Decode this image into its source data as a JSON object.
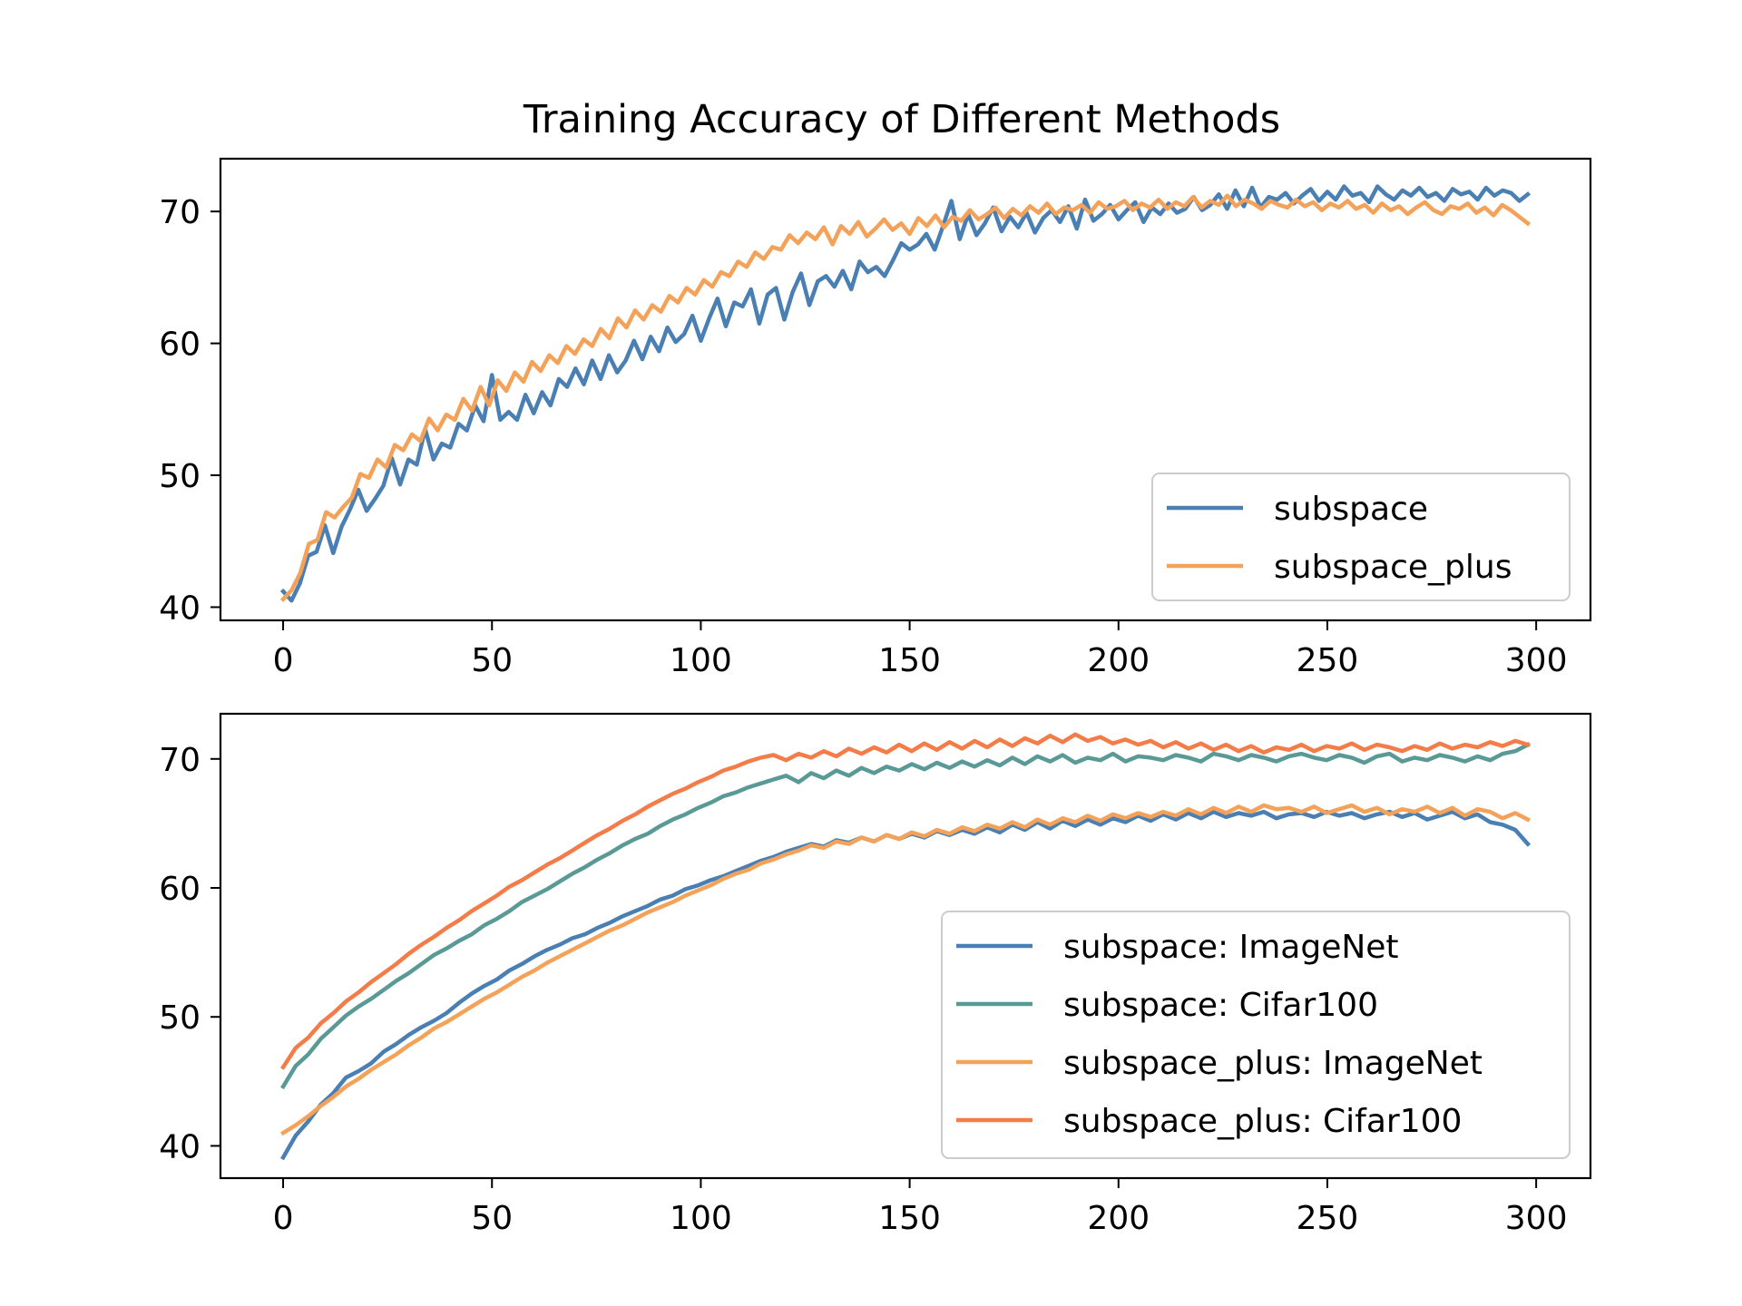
{
  "figure_title": "Training Accuracy of Different Methods",
  "chart_data": [
    {
      "type": "line",
      "title": "",
      "xlabel": "",
      "ylabel": "",
      "xlim": [
        -15,
        313
      ],
      "ylim": [
        39,
        74
      ],
      "xticks": [
        0,
        50,
        100,
        150,
        200,
        250,
        300
      ],
      "yticks": [
        40,
        50,
        60,
        70
      ],
      "grid": false,
      "legend_position": "lower right",
      "series": [
        {
          "name": "subspace",
          "color": "#4a7fb3",
          "values": [
            41.2,
            40.5,
            41.8,
            43.9,
            44.2,
            46.2,
            44.1,
            46.1,
            47.4,
            48.9,
            47.3,
            48.2,
            49.2,
            51.3,
            49.3,
            51.2,
            50.8,
            53.5,
            51.2,
            52.4,
            52.1,
            53.9,
            53.4,
            55.3,
            54.1,
            57.6,
            54.2,
            54.8,
            54.2,
            56.1,
            54.7,
            56.3,
            55.3,
            57.3,
            56.7,
            58.1,
            56.9,
            58.7,
            57.3,
            59.1,
            57.8,
            58.7,
            60.2,
            58.8,
            60.5,
            59.4,
            61.2,
            60.1,
            60.7,
            62.1,
            60.2,
            61.9,
            63.4,
            61.3,
            63.1,
            62.8,
            64.1,
            61.5,
            63.7,
            64.2,
            61.8,
            63.9,
            65.3,
            62.9,
            64.7,
            65.1,
            64.3,
            65.5,
            64.1,
            66.2,
            65.4,
            65.8,
            65.1,
            66.3,
            67.6,
            67.1,
            67.5,
            68.3,
            67.1,
            68.9,
            70.8,
            67.9,
            69.8,
            68.2,
            69.1,
            70.3,
            68.5,
            69.6,
            68.8,
            69.9,
            68.4,
            69.5,
            70.1,
            69.2,
            70.4,
            68.7,
            70.9,
            69.3,
            69.8,
            70.5,
            69.4,
            70.1,
            70.7,
            69.2,
            70.3,
            69.8,
            70.6,
            69.9,
            70.2,
            71.1,
            70.1,
            70.5,
            71.3,
            70.2,
            71.6,
            70.4,
            71.8,
            70.3,
            71.1,
            70.9,
            71.4,
            70.6,
            71.2,
            71.7,
            70.8,
            71.5,
            70.9,
            71.9,
            71.2,
            71.4,
            70.7,
            71.9,
            71.3,
            70.9,
            71.6,
            71.2,
            71.8,
            71.1,
            71.4,
            70.8,
            71.7,
            71.3,
            71.5,
            70.9,
            71.8,
            71.2,
            71.6,
            71.4,
            70.8,
            71.3
          ]
        },
        {
          "name": "subspace_plus",
          "color": "#f4a259",
          "values": [
            40.6,
            41.3,
            42.6,
            44.8,
            45.1,
            47.2,
            46.8,
            47.6,
            48.3,
            50.1,
            49.8,
            51.2,
            50.6,
            52.3,
            51.9,
            53.1,
            52.6,
            54.3,
            53.4,
            54.6,
            54.2,
            55.8,
            54.9,
            56.7,
            55.3,
            57.2,
            56.4,
            57.8,
            57.1,
            58.6,
            57.9,
            59.1,
            58.5,
            59.8,
            59.2,
            60.3,
            59.8,
            61.1,
            60.4,
            61.9,
            61.2,
            62.5,
            61.8,
            62.9,
            62.4,
            63.6,
            63.1,
            64.2,
            63.7,
            64.8,
            64.3,
            65.4,
            65.1,
            66.2,
            65.8,
            66.9,
            66.4,
            67.3,
            67.1,
            68.2,
            67.6,
            68.4,
            67.9,
            68.8,
            67.5,
            68.9,
            68.3,
            69.2,
            68.1,
            68.7,
            69.4,
            68.6,
            69.1,
            68.3,
            69.5,
            68.9,
            69.7,
            68.8,
            69.6,
            69.3,
            70.1,
            69.4,
            69.8,
            70.3,
            69.5,
            70.2,
            69.7,
            70.4,
            69.9,
            70.6,
            69.8,
            70.3,
            70.1,
            70.5,
            69.9,
            70.7,
            70.2,
            70.4,
            70.8,
            70.1,
            70.6,
            70.3,
            70.9,
            70.2,
            70.7,
            70.4,
            71.1,
            70.3,
            70.8,
            70.5,
            71.2,
            70.4,
            70.9,
            70.6,
            70.2,
            70.8,
            70.5,
            70.3,
            70.9,
            70.4,
            70.7,
            70.1,
            70.6,
            70.3,
            70.8,
            70.2,
            70.5,
            69.9,
            70.6,
            70.1,
            70.4,
            69.8,
            70.3,
            70.7,
            70.1,
            69.8,
            70.4,
            70.2,
            70.6,
            69.9,
            70.3,
            69.7,
            70.5,
            70.1,
            69.6,
            69.1
          ]
        }
      ]
    },
    {
      "type": "line",
      "title": "",
      "xlabel": "",
      "ylabel": "",
      "xlim": [
        -15,
        313
      ],
      "ylim": [
        37.5,
        73.5
      ],
      "xticks": [
        0,
        50,
        100,
        150,
        200,
        250,
        300
      ],
      "yticks": [
        40,
        50,
        60,
        70
      ],
      "grid": false,
      "legend_position": "lower right",
      "series": [
        {
          "name": "subspace: ImageNet",
          "color": "#4a7fb3",
          "values": [
            39.1,
            40.8,
            41.9,
            43.2,
            44.1,
            45.3,
            45.8,
            46.4,
            47.3,
            47.9,
            48.6,
            49.2,
            49.7,
            50.3,
            51.1,
            51.8,
            52.4,
            52.9,
            53.6,
            54.1,
            54.7,
            55.2,
            55.6,
            56.1,
            56.4,
            56.9,
            57.3,
            57.8,
            58.2,
            58.6,
            59.1,
            59.4,
            59.9,
            60.2,
            60.6,
            60.9,
            61.3,
            61.7,
            62.1,
            62.4,
            62.8,
            63.1,
            63.4,
            63.2,
            63.7,
            63.5,
            63.9,
            63.6,
            64.1,
            63.8,
            64.2,
            63.9,
            64.4,
            64.1,
            64.5,
            64.2,
            64.7,
            64.3,
            64.9,
            64.5,
            65.1,
            64.6,
            65.2,
            64.8,
            65.3,
            64.9,
            65.4,
            65.1,
            65.6,
            65.2,
            65.7,
            65.3,
            65.8,
            65.4,
            65.9,
            65.5,
            65.8,
            65.6,
            65.9,
            65.4,
            65.7,
            65.8,
            65.5,
            65.9,
            65.6,
            65.8,
            65.4,
            65.7,
            65.9,
            65.5,
            65.8,
            65.3,
            65.6,
            65.9,
            65.4,
            65.7,
            65.1,
            64.9,
            64.5,
            63.4
          ]
        },
        {
          "name": "subspace: Cifar100",
          "color": "#5a9a96",
          "values": [
            44.6,
            46.2,
            47.1,
            48.3,
            49.2,
            50.1,
            50.8,
            51.4,
            52.1,
            52.8,
            53.4,
            54.1,
            54.8,
            55.3,
            55.9,
            56.4,
            57.1,
            57.6,
            58.2,
            58.9,
            59.4,
            59.9,
            60.5,
            61.1,
            61.6,
            62.2,
            62.7,
            63.3,
            63.8,
            64.2,
            64.8,
            65.3,
            65.7,
            66.2,
            66.6,
            67.1,
            67.4,
            67.8,
            68.1,
            68.4,
            68.7,
            68.2,
            68.9,
            68.5,
            69.1,
            68.7,
            69.3,
            68.9,
            69.4,
            69.1,
            69.6,
            69.2,
            69.7,
            69.3,
            69.8,
            69.4,
            69.9,
            69.5,
            70.1,
            69.6,
            70.2,
            69.8,
            70.3,
            69.7,
            70.1,
            69.9,
            70.4,
            69.8,
            70.2,
            70.1,
            69.9,
            70.3,
            70.1,
            69.8,
            70.4,
            70.2,
            69.9,
            70.3,
            70.1,
            69.8,
            70.2,
            70.4,
            70.1,
            69.9,
            70.3,
            70.1,
            69.7,
            70.2,
            70.4,
            69.8,
            70.1,
            69.9,
            70.3,
            70.1,
            69.8,
            70.2,
            69.9,
            70.4,
            70.6,
            71.1
          ]
        },
        {
          "name": "subspace_plus: ImageNet",
          "color": "#f4a259",
          "values": [
            41.0,
            41.6,
            42.3,
            43.1,
            43.8,
            44.6,
            45.2,
            45.9,
            46.5,
            47.1,
            47.8,
            48.4,
            49.1,
            49.6,
            50.2,
            50.8,
            51.4,
            51.9,
            52.5,
            53.1,
            53.6,
            54.2,
            54.7,
            55.2,
            55.7,
            56.2,
            56.7,
            57.1,
            57.6,
            58.1,
            58.5,
            58.9,
            59.4,
            59.8,
            60.2,
            60.7,
            61.1,
            61.4,
            61.9,
            62.2,
            62.6,
            62.9,
            63.3,
            63.1,
            63.6,
            63.4,
            63.9,
            63.6,
            64.1,
            63.8,
            64.3,
            64.0,
            64.5,
            64.2,
            64.7,
            64.4,
            64.9,
            64.6,
            65.1,
            64.7,
            65.3,
            64.9,
            65.4,
            65.1,
            65.6,
            65.2,
            65.7,
            65.4,
            65.8,
            65.5,
            65.9,
            65.6,
            66.1,
            65.7,
            66.2,
            65.8,
            66.3,
            65.9,
            66.4,
            66.1,
            66.2,
            65.9,
            66.3,
            65.8,
            66.1,
            66.4,
            65.9,
            66.2,
            65.7,
            66.1,
            65.9,
            66.3,
            65.8,
            66.2,
            65.6,
            66.1,
            65.9,
            65.4,
            65.8,
            65.3
          ]
        },
        {
          "name": "subspace_plus: Cifar100",
          "color": "#f47c48",
          "values": [
            46.1,
            47.6,
            48.4,
            49.5,
            50.3,
            51.2,
            51.9,
            52.7,
            53.4,
            54.1,
            54.9,
            55.6,
            56.2,
            56.9,
            57.5,
            58.2,
            58.8,
            59.4,
            60.1,
            60.6,
            61.2,
            61.8,
            62.3,
            62.9,
            63.5,
            64.1,
            64.6,
            65.2,
            65.7,
            66.3,
            66.8,
            67.3,
            67.7,
            68.2,
            68.6,
            69.1,
            69.4,
            69.8,
            70.1,
            70.3,
            69.9,
            70.4,
            70.1,
            70.6,
            70.2,
            70.8,
            70.4,
            70.9,
            70.5,
            71.1,
            70.6,
            71.2,
            70.7,
            71.3,
            70.8,
            71.4,
            70.9,
            71.5,
            71.0,
            71.6,
            71.2,
            71.8,
            71.3,
            71.9,
            71.4,
            71.7,
            71.2,
            71.5,
            71.1,
            71.4,
            70.9,
            71.3,
            70.8,
            71.2,
            70.7,
            71.1,
            70.6,
            71.0,
            70.5,
            70.9,
            70.7,
            71.1,
            70.6,
            71.0,
            70.8,
            71.2,
            70.7,
            71.1,
            70.9,
            70.6,
            71.0,
            70.7,
            71.2,
            70.8,
            71.1,
            70.9,
            71.3,
            71.0,
            71.4,
            71.1
          ]
        }
      ]
    }
  ]
}
